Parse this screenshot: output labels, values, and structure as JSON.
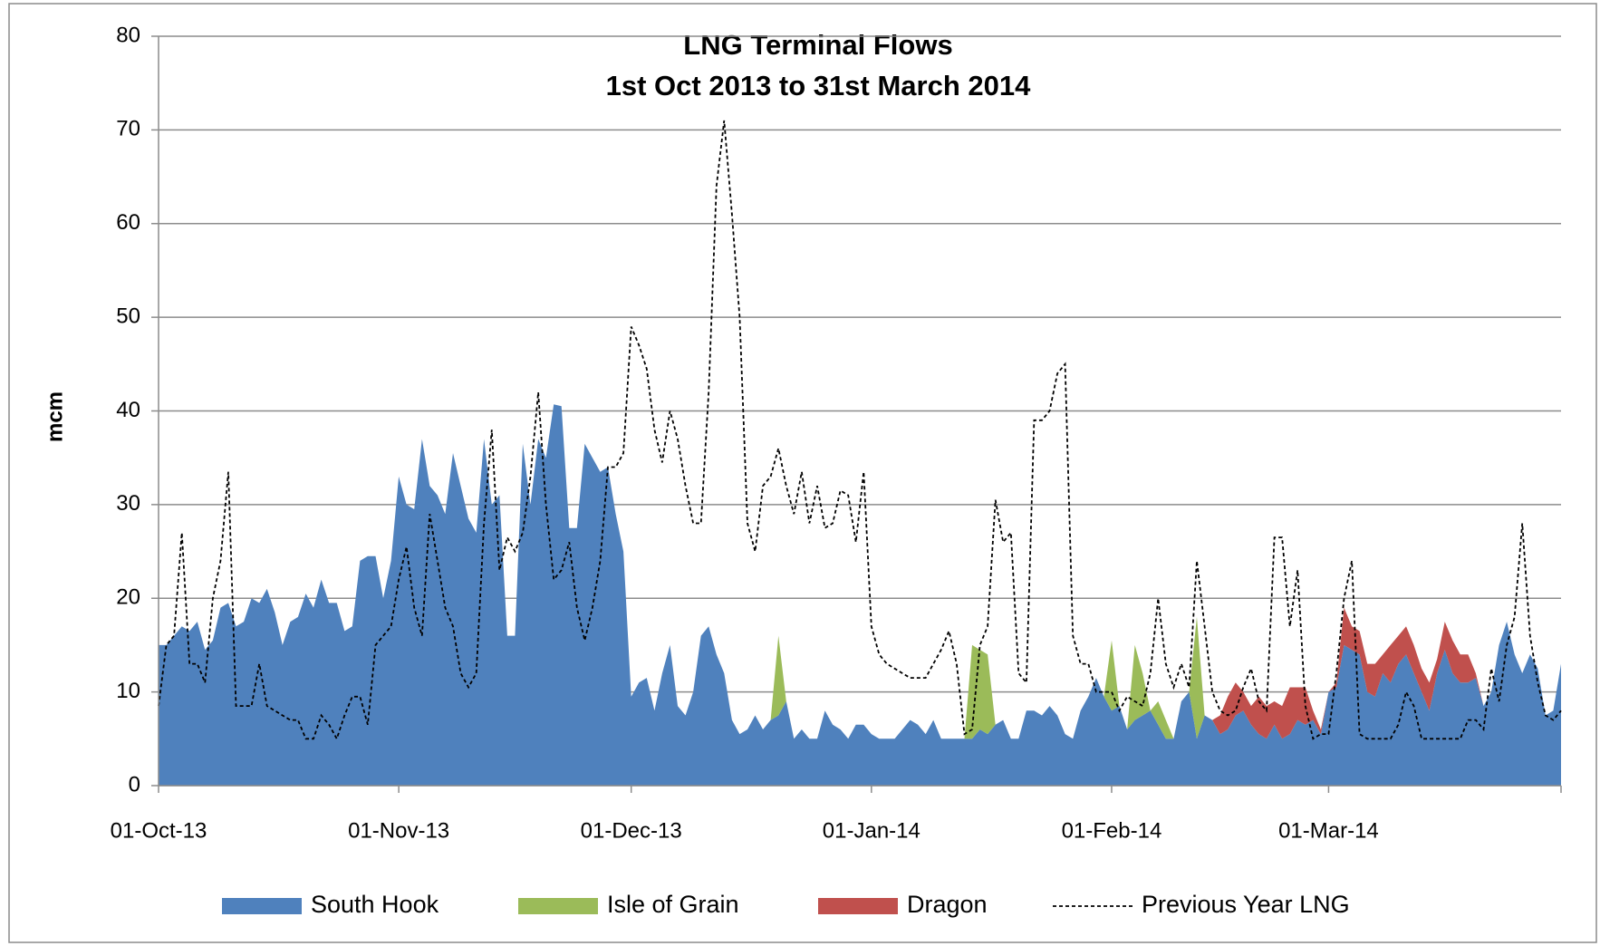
{
  "chart_data": {
    "type": "area",
    "title": "LNG Terminal Flows",
    "subtitle": "1st Oct 2013 to 31st March 2014",
    "y_label": "mcm",
    "x": [
      "2013-10-01",
      "2013-10-02",
      "2013-10-03",
      "2013-10-04",
      "2013-10-05",
      "2013-10-06",
      "2013-10-07",
      "2013-10-08",
      "2013-10-09",
      "2013-10-10",
      "2013-10-11",
      "2013-10-12",
      "2013-10-13",
      "2013-10-14",
      "2013-10-15",
      "2013-10-16",
      "2013-10-17",
      "2013-10-18",
      "2013-10-19",
      "2013-10-20",
      "2013-10-21",
      "2013-10-22",
      "2013-10-23",
      "2013-10-24",
      "2013-10-25",
      "2013-10-26",
      "2013-10-27",
      "2013-10-28",
      "2013-10-29",
      "2013-10-30",
      "2013-10-31",
      "2013-11-01",
      "2013-11-02",
      "2013-11-03",
      "2013-11-04",
      "2013-11-05",
      "2013-11-06",
      "2013-11-07",
      "2013-11-08",
      "2013-11-09",
      "2013-11-10",
      "2013-11-11",
      "2013-11-12",
      "2013-11-13",
      "2013-11-14",
      "2013-11-15",
      "2013-11-16",
      "2013-11-17",
      "2013-11-18",
      "2013-11-19",
      "2013-11-20",
      "2013-11-21",
      "2013-11-22",
      "2013-11-23",
      "2013-11-24",
      "2013-11-25",
      "2013-11-26",
      "2013-11-27",
      "2013-11-28",
      "2013-11-29",
      "2013-11-30",
      "2013-12-01",
      "2013-12-02",
      "2013-12-03",
      "2013-12-04",
      "2013-12-05",
      "2013-12-06",
      "2013-12-07",
      "2013-12-08",
      "2013-12-09",
      "2013-12-10",
      "2013-12-11",
      "2013-12-12",
      "2013-12-13",
      "2013-12-14",
      "2013-12-15",
      "2013-12-16",
      "2013-12-17",
      "2013-12-18",
      "2013-12-19",
      "2013-12-20",
      "2013-12-21",
      "2013-12-22",
      "2013-12-23",
      "2013-12-24",
      "2013-12-25",
      "2013-12-26",
      "2013-12-27",
      "2013-12-28",
      "2013-12-29",
      "2013-12-30",
      "2013-12-31",
      "2014-01-01",
      "2014-01-02",
      "2014-01-03",
      "2014-01-04",
      "2014-01-05",
      "2014-01-06",
      "2014-01-07",
      "2014-01-08",
      "2014-01-09",
      "2014-01-10",
      "2014-01-11",
      "2014-01-12",
      "2014-01-13",
      "2014-01-14",
      "2014-01-15",
      "2014-01-16",
      "2014-01-17",
      "2014-01-18",
      "2014-01-19",
      "2014-01-20",
      "2014-01-21",
      "2014-01-22",
      "2014-01-23",
      "2014-01-24",
      "2014-01-25",
      "2014-01-26",
      "2014-01-27",
      "2014-01-28",
      "2014-01-29",
      "2014-01-30",
      "2014-01-31",
      "2014-02-01",
      "2014-02-02",
      "2014-02-03",
      "2014-02-04",
      "2014-02-05",
      "2014-02-06",
      "2014-02-07",
      "2014-02-08",
      "2014-02-09",
      "2014-02-10",
      "2014-02-11",
      "2014-02-12",
      "2014-02-13",
      "2014-02-14",
      "2014-02-15",
      "2014-02-16",
      "2014-02-17",
      "2014-02-18",
      "2014-02-19",
      "2014-02-20",
      "2014-02-21",
      "2014-02-22",
      "2014-02-23",
      "2014-02-24",
      "2014-02-25",
      "2014-02-26",
      "2014-02-27",
      "2014-02-28",
      "2014-03-01",
      "2014-03-02",
      "2014-03-03",
      "2014-03-04",
      "2014-03-05",
      "2014-03-06",
      "2014-03-07",
      "2014-03-08",
      "2014-03-09",
      "2014-03-10",
      "2014-03-11",
      "2014-03-12",
      "2014-03-13",
      "2014-03-14",
      "2014-03-15",
      "2014-03-16",
      "2014-03-17",
      "2014-03-18",
      "2014-03-19",
      "2014-03-20",
      "2014-03-21",
      "2014-03-22",
      "2014-03-23",
      "2014-03-24",
      "2014-03-25",
      "2014-03-26",
      "2014-03-27",
      "2014-03-28",
      "2014-03-29",
      "2014-03-30",
      "2014-03-31"
    ],
    "series": [
      {
        "name": "South Hook",
        "color": "#4f81bd",
        "values": [
          15,
          15,
          16,
          17,
          16.5,
          17.5,
          14.5,
          15.5,
          19,
          19.5,
          17,
          17.5,
          20,
          19.5,
          21,
          18.5,
          15,
          17.5,
          18,
          20.5,
          19,
          22,
          19.5,
          19.5,
          16.5,
          17,
          24,
          24.5,
          24.5,
          20,
          24,
          33,
          30,
          29.5,
          37,
          32,
          31,
          29,
          35.5,
          32,
          28.5,
          27,
          37,
          30,
          31,
          16,
          16,
          36.5,
          30,
          37,
          35,
          40.7,
          40.5,
          27.5,
          27.5,
          36.5,
          35,
          33.5,
          34,
          29,
          25,
          9.5,
          11,
          11.5,
          8,
          12,
          15,
          8.5,
          7.5,
          10,
          16,
          17,
          14,
          12,
          7,
          5.5,
          6,
          7.5,
          6,
          7,
          7.5,
          9,
          5,
          6,
          5,
          5,
          8,
          6.5,
          6,
          5,
          6.5,
          6.5,
          5.5,
          5,
          5,
          5,
          6,
          7,
          6.5,
          5.5,
          7,
          5,
          5,
          5,
          5,
          5,
          6,
          5.5,
          6.5,
          7,
          5,
          5,
          8,
          8,
          7.5,
          8.5,
          7.5,
          5.5,
          5,
          8,
          9.5,
          11.5,
          9.5,
          8,
          8.5,
          6,
          7,
          7.5,
          8,
          6.5,
          5,
          5,
          9,
          10,
          5,
          7.5,
          7,
          5.5,
          6,
          7.5,
          8,
          6.5,
          5.5,
          5,
          6.5,
          5,
          5.5,
          7,
          6.5,
          7,
          5.5,
          10,
          10.5,
          15,
          14.5,
          14,
          10,
          9.5,
          12,
          11,
          13,
          14,
          12,
          10,
          8,
          12,
          14.5,
          12,
          11,
          11,
          11.5,
          8.5,
          10,
          15,
          17.5,
          14,
          12,
          14,
          12.5,
          7.5,
          8,
          13
        ]
      },
      {
        "name": "Isle of Grain",
        "color": "#9bbb59",
        "values": [
          0,
          0,
          0,
          0,
          0,
          0,
          0,
          0,
          0,
          0,
          0,
          0,
          0,
          0,
          0,
          0,
          0,
          0,
          0,
          0,
          0,
          0,
          0,
          0,
          0,
          0,
          0,
          0,
          0,
          0,
          0,
          0,
          0,
          0,
          0,
          0,
          0,
          0,
          0,
          0,
          0,
          0,
          0,
          0,
          0,
          0,
          0,
          0,
          0,
          0,
          0,
          0,
          0,
          0,
          0,
          0,
          0,
          0,
          0,
          0,
          0,
          0,
          0,
          0,
          0,
          0,
          0,
          0,
          0,
          0,
          0,
          0,
          0,
          0,
          0,
          0,
          0,
          0,
          0,
          0,
          8.5,
          0,
          0,
          0,
          0,
          0,
          0,
          0,
          0,
          0,
          0,
          0,
          0,
          0,
          0,
          0,
          0,
          0,
          0,
          0,
          0,
          0,
          0,
          0,
          0,
          10,
          8.5,
          8.5,
          0,
          0,
          0,
          0,
          0,
          0,
          0,
          0,
          0,
          0,
          0,
          0,
          0,
          0,
          0,
          7.5,
          0,
          0,
          8,
          4.5,
          0,
          2.5,
          2,
          0,
          0,
          0,
          13,
          0,
          0,
          0,
          0,
          0,
          0,
          0,
          0,
          0,
          0,
          0,
          0,
          0,
          0,
          0,
          0,
          0,
          0,
          0,
          0,
          0,
          0,
          0,
          0,
          0,
          0,
          0,
          0,
          0,
          0,
          0,
          0,
          0,
          0,
          0,
          0,
          0,
          0,
          0,
          0,
          0,
          0,
          0,
          0,
          0,
          0,
          0
        ]
      },
      {
        "name": "Dragon",
        "color": "#c0504d",
        "values": [
          0,
          0,
          0,
          0,
          0,
          0,
          0,
          0,
          0,
          0,
          0,
          0,
          0,
          0,
          0,
          0,
          0,
          0,
          0,
          0,
          0,
          0,
          0,
          0,
          0,
          0,
          0,
          0,
          0,
          0,
          0,
          0,
          0,
          0,
          0,
          0,
          0,
          0,
          0,
          0,
          0,
          0,
          0,
          0,
          0,
          0,
          0,
          0,
          0,
          0,
          0,
          0,
          0,
          0,
          0,
          0,
          0,
          0,
          0,
          0,
          0,
          0,
          0,
          0,
          0,
          0,
          0,
          0,
          0,
          0,
          0,
          0,
          0,
          0,
          0,
          0,
          0,
          0,
          0,
          0,
          0,
          0,
          0,
          0,
          0,
          0,
          0,
          0,
          0,
          0,
          0,
          0,
          0,
          0,
          0,
          0,
          0,
          0,
          0,
          0,
          0,
          0,
          0,
          0,
          0,
          0,
          0,
          0,
          0,
          0,
          0,
          0,
          0,
          0,
          0,
          0,
          0,
          0,
          0,
          0,
          0,
          0,
          0,
          0,
          0,
          0,
          0,
          0,
          0,
          0,
          0,
          0,
          0,
          0,
          0,
          0,
          0,
          2,
          3.5,
          3.5,
          2,
          2,
          4,
          3.5,
          2.5,
          3.5,
          5,
          3.5,
          4,
          1,
          0.5,
          0,
          0.5,
          4,
          2.5,
          2.5,
          3,
          3.5,
          2,
          4,
          3,
          3,
          3,
          2.5,
          3,
          1.5,
          3,
          3.5,
          3,
          3,
          0.5,
          0,
          0,
          0,
          0,
          0,
          0,
          0,
          0,
          0,
          0,
          0
        ]
      },
      {
        "name": "Previous Year LNG",
        "color": "#000000",
        "type": "line",
        "values": [
          8.5,
          15,
          16,
          27,
          13,
          13,
          11,
          20,
          24,
          33.5,
          8.5,
          8.5,
          8.5,
          13,
          8.5,
          8,
          7.5,
          7,
          7,
          5,
          5,
          7.5,
          6.5,
          5,
          7.5,
          9.5,
          9.5,
          6.5,
          15,
          16,
          17,
          22,
          25.5,
          19,
          16,
          29,
          24,
          19,
          17,
          12,
          10.5,
          12,
          28,
          38,
          23,
          26.5,
          25,
          27,
          33,
          42,
          30,
          22,
          23,
          26,
          19,
          15.5,
          19,
          24,
          34,
          34,
          35.5,
          49,
          47,
          44.5,
          38,
          34.5,
          40,
          37,
          32,
          28,
          28,
          42,
          64,
          71,
          61,
          50,
          28,
          25,
          32,
          33,
          36,
          32,
          29,
          33.5,
          28,
          32,
          27.5,
          28,
          31.5,
          31,
          26,
          33.5,
          17,
          14,
          13,
          12.5,
          12,
          11.5,
          11.5,
          11.5,
          13,
          14.5,
          16.5,
          13,
          5.5,
          6,
          15,
          17,
          30.5,
          26,
          27,
          12,
          11,
          39,
          39,
          40,
          44,
          45,
          16,
          13,
          13,
          10,
          10,
          10,
          8,
          9.5,
          9,
          8.5,
          12,
          20,
          13,
          10.5,
          13,
          10.5,
          24,
          17,
          10,
          8,
          7.5,
          8,
          10.5,
          12.5,
          9,
          8,
          26.5,
          26.5,
          17,
          23,
          8.5,
          5,
          5.5,
          5.5,
          12,
          20,
          24,
          5.5,
          5,
          5,
          5,
          5,
          6.5,
          10,
          8.5,
          5,
          5,
          5,
          5,
          5,
          5,
          7,
          7,
          6,
          12.5,
          9,
          15,
          18,
          28,
          16,
          11,
          7.5,
          7,
          8
        ]
      }
    ],
    "xlim": [
      "2013-10-01",
      "2014-03-31"
    ],
    "xticks": [
      {
        "value": "2013-10-01",
        "label": "01-Oct-13"
      },
      {
        "value": "2013-11-01",
        "label": "01-Nov-13"
      },
      {
        "value": "2013-12-01",
        "label": "01-Dec-13"
      },
      {
        "value": "2014-01-01",
        "label": "01-Jan-14"
      },
      {
        "value": "2014-02-01",
        "label": "01-Feb-14"
      },
      {
        "value": "2014-03-01",
        "label": "01-Mar-14"
      }
    ],
    "ylim": [
      0,
      80
    ],
    "yticks": [
      0,
      10,
      20,
      30,
      40,
      50,
      60,
      70,
      80
    ],
    "grid": true,
    "legend": "bottom"
  }
}
